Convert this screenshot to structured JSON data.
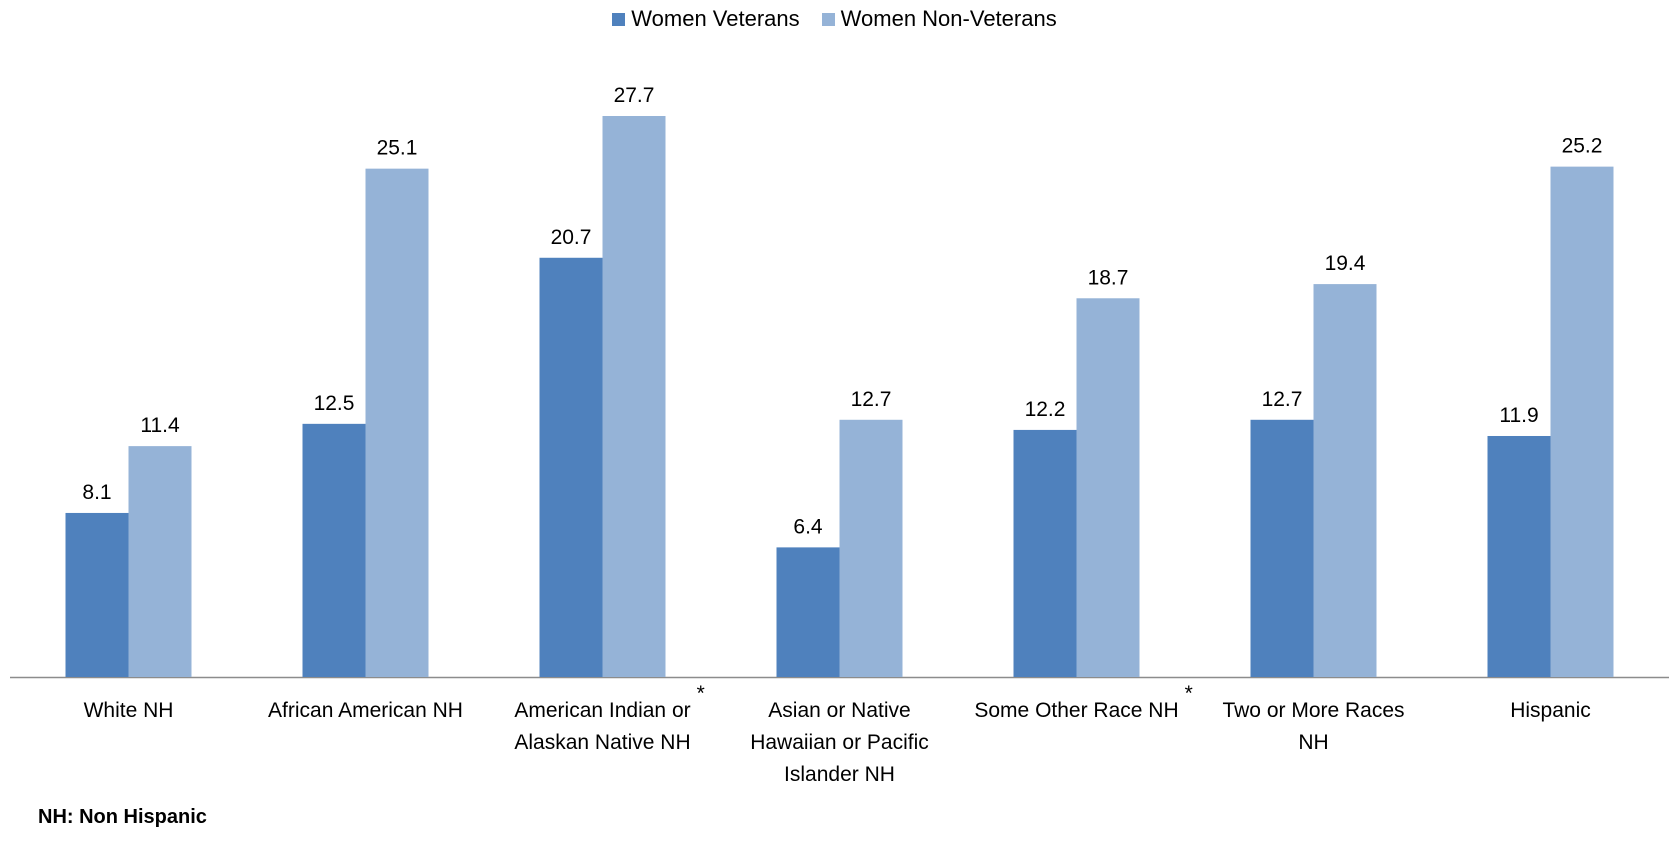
{
  "legend": {
    "series1": "Women Veterans",
    "series2": "Women Non-Veterans"
  },
  "footnote": "NH:  Non Hispanic",
  "chart_data": {
    "type": "bar",
    "categories": [
      [
        "White NH"
      ],
      [
        "African American NH"
      ],
      [
        "American Indian or",
        "Alaskan Native NH"
      ],
      [
        "Asian or Native",
        "Hawaiian or Pacific",
        "Islander NH"
      ],
      [
        "Some Other Race NH"
      ],
      [
        "Two or More Races",
        "NH"
      ],
      [
        "Hispanic"
      ]
    ],
    "asterisk_categories": [
      2,
      4
    ],
    "asterisk": "*",
    "series": [
      {
        "name": "Women Veterans",
        "color": "#4F81BD",
        "values": [
          8.1,
          12.5,
          20.7,
          6.4,
          12.2,
          12.7,
          11.9
        ]
      },
      {
        "name": "Women Non-Veterans",
        "color": "#95B3D7",
        "values": [
          11.4,
          25.1,
          27.7,
          12.7,
          18.7,
          19.4,
          25.2
        ]
      }
    ],
    "ylim": [
      0,
      30
    ],
    "grid": false,
    "legend_position": "top-center"
  }
}
